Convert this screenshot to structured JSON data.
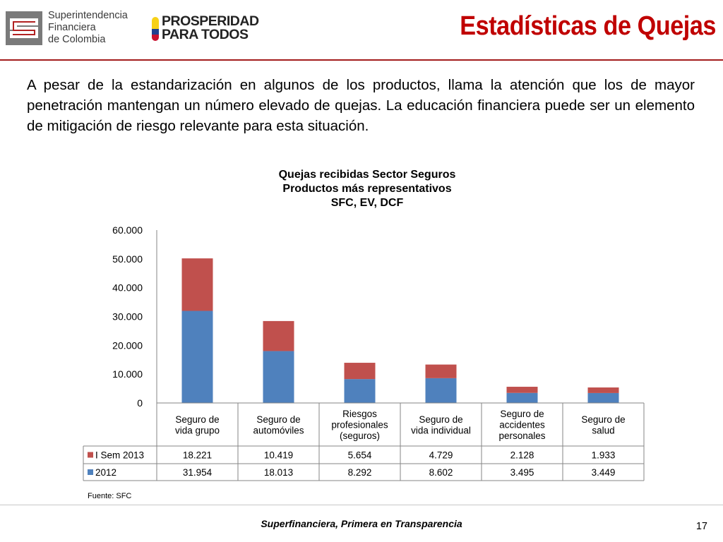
{
  "header": {
    "sfc_logo": {
      "line1": "Superintendencia",
      "line2": "Financiera",
      "line3": "de Colombia"
    },
    "prosperidad_logo": {
      "line1": "PROSPERIDAD",
      "line2": "PARA TODOS"
    },
    "title": "Estadísticas de Quejas"
  },
  "intro": "A pesar de la estandarización en algunos de los productos, llama la atención que los de mayor penetración mantengan un número elevado de quejas. La educación financiera puede ser un elemento de mitigación de riesgo relevante para esta situación.",
  "chart_data": {
    "type": "bar",
    "stacked": true,
    "title": [
      "Quejas recibidas Sector Seguros",
      "Productos más representativos",
      "SFC, EV, DCF"
    ],
    "categories": [
      [
        "Seguro de",
        "vida grupo"
      ],
      [
        "Seguro de",
        "automóviles"
      ],
      [
        "Riesgos",
        "profesionales",
        "(seguros)"
      ],
      [
        "Seguro de",
        "vida individual"
      ],
      [
        "Seguro de",
        "accidentes",
        "personales"
      ],
      [
        "Seguro de",
        "salud"
      ]
    ],
    "series": [
      {
        "name": "I Sem 2013",
        "color": "#c0504d",
        "values": [
          18221,
          10419,
          5654,
          4729,
          2128,
          1933
        ],
        "labels": [
          "18.221",
          "10.419",
          "5.654",
          "4.729",
          "2.128",
          "1.933"
        ]
      },
      {
        "name": "2012",
        "color": "#4f81bd",
        "values": [
          31954,
          18013,
          8292,
          8602,
          3495,
          3449
        ],
        "labels": [
          "31.954",
          "18.013",
          "8.292",
          "8.602",
          "3.495",
          "3.449"
        ]
      }
    ],
    "stack_order": [
      "2012",
      "I Sem 2013"
    ],
    "y_ticks": [
      "0",
      "10.000",
      "20.000",
      "30.000",
      "40.000",
      "50.000",
      "60.000"
    ],
    "ylim": [
      0,
      60000
    ],
    "data_table": true,
    "legend": "data-table"
  },
  "source": "Fuente: SFC",
  "footer": {
    "text": "Superfinanciera, Primera en Transparencia",
    "page": "17"
  },
  "colors": {
    "title_red": "#c00000",
    "rule": "#a31c1c"
  }
}
